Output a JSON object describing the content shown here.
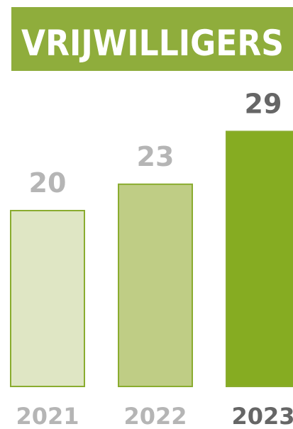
{
  "chart_data": {
    "type": "bar",
    "title": "VRIJWILLIGERS",
    "categories": [
      "2021",
      "2022",
      "2023"
    ],
    "values": [
      20,
      23,
      29
    ],
    "colors": [
      "#dfe6c4",
      "#bfcd85",
      "#86ac22"
    ],
    "edge_color": "#8aac2f",
    "label_colors": [
      "#b5b5b5",
      "#b5b5b5",
      "#666666"
    ],
    "title_background": "#8fad3c"
  }
}
